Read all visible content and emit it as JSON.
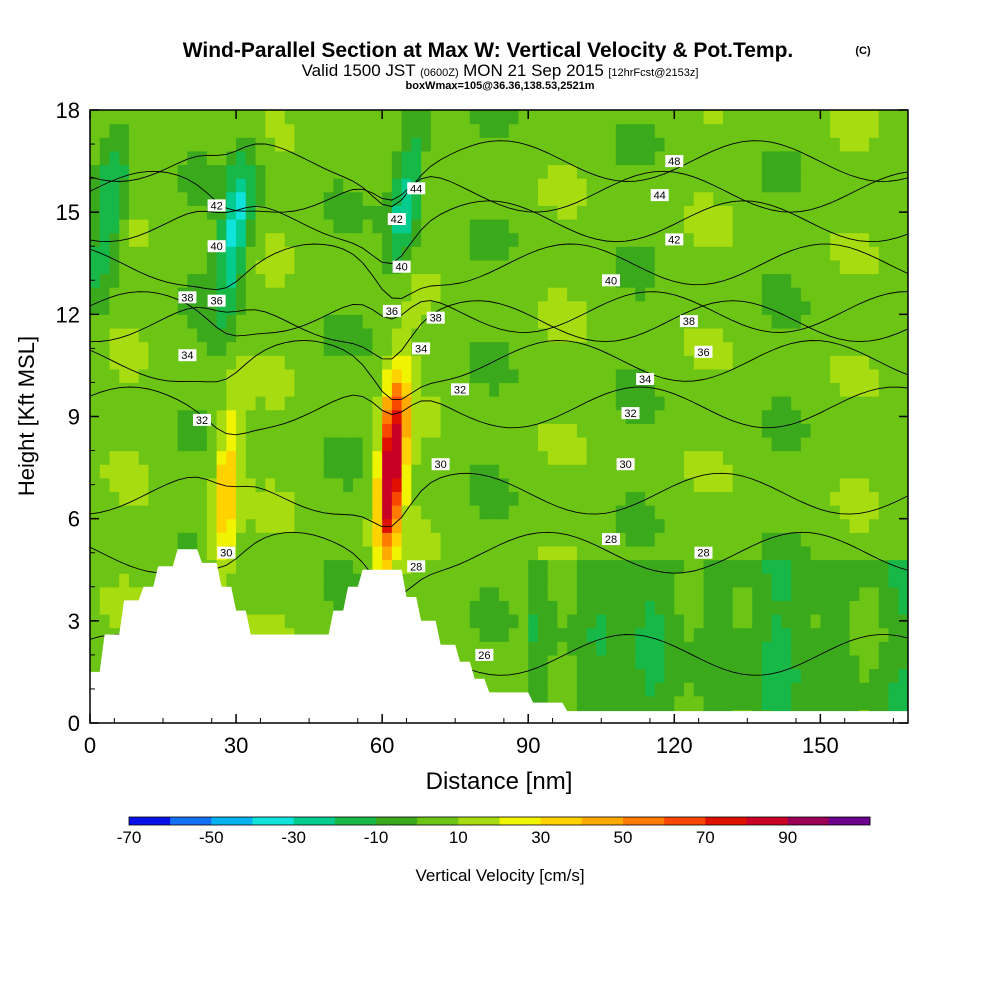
{
  "header": {
    "title": "Wind-Parallel Section at Max W: Vertical Velocity & Pot.Temp.",
    "copyright": "(C)",
    "valid_prefix": "Valid 1500 JST",
    "valid_utc": "(0600Z)",
    "valid_date": "MON 21 Sep 2015",
    "forecast": "[12hrFcst@2153z]",
    "box_info": "boxWmax=105@36.36,138.53,2521m"
  },
  "colorbar": {
    "label": "Vertical Velocity [cm/s]",
    "tick_labels": [
      "-70",
      "-50",
      "-30",
      "-10",
      "10",
      "30",
      "50",
      "70",
      "90"
    ],
    "bins": [
      -70,
      -60,
      -50,
      -40,
      -30,
      -20,
      -10,
      0,
      10,
      20,
      30,
      40,
      50,
      60,
      70,
      80,
      90,
      100
    ],
    "colors": [
      "#0a10e8",
      "#1470f2",
      "#08b2f0",
      "#10e2dc",
      "#04cc8e",
      "#18b848",
      "#3aaa1c",
      "#6cc414",
      "#a6dc10",
      "#f0f400",
      "#ffd200",
      "#ffaa00",
      "#ff7c00",
      "#f84800",
      "#e01000",
      "#c80026",
      "#9a0058",
      "#6a008c"
    ]
  },
  "chart_data": {
    "type": "heatmap",
    "xlabel": "Distance [nm]",
    "ylabel": "Height [Kft MSL]",
    "xlim": [
      0,
      168
    ],
    "ylim": [
      0,
      18
    ],
    "x_ticks": [
      0,
      30,
      60,
      90,
      120,
      150
    ],
    "y_ticks": [
      0,
      3,
      6,
      9,
      12,
      15,
      18
    ],
    "field": "Vertical Velocity [cm/s]",
    "contour_field": "Potential temperature",
    "background_value": 5,
    "features": [
      {
        "kind": "updraft",
        "x": 62,
        "y": 7.5,
        "peak": 100
      },
      {
        "kind": "updraft",
        "x": 28,
        "y": 6.8,
        "peak": 42
      },
      {
        "kind": "downdraft",
        "x": 30,
        "y": 14.5,
        "peak": -35
      },
      {
        "kind": "downdraft",
        "x": 65,
        "y": 15.5,
        "peak": -28
      },
      {
        "kind": "downdraft",
        "x": 4,
        "y": 15,
        "peak": -25
      }
    ],
    "terrain": [
      [
        0,
        1.5
      ],
      [
        2,
        1.5
      ],
      [
        3,
        2.6
      ],
      [
        6,
        2.6
      ],
      [
        7,
        3.6
      ],
      [
        10,
        3.6
      ],
      [
        11,
        4.0
      ],
      [
        13,
        4.0
      ],
      [
        14,
        4.6
      ],
      [
        17,
        4.6
      ],
      [
        18,
        5.1
      ],
      [
        22,
        5.1
      ],
      [
        23,
        4.7
      ],
      [
        26,
        4.7
      ],
      [
        27,
        4.0
      ],
      [
        29,
        4.0
      ],
      [
        30,
        3.3
      ],
      [
        32,
        3.3
      ],
      [
        33,
        2.6
      ],
      [
        49,
        2.6
      ],
      [
        50,
        3.3
      ],
      [
        52,
        3.3
      ],
      [
        53,
        4.0
      ],
      [
        55,
        4.0
      ],
      [
        56,
        4.5
      ],
      [
        64,
        4.5
      ],
      [
        65,
        3.7
      ],
      [
        67,
        3.7
      ],
      [
        68,
        3.0
      ],
      [
        71,
        3.0
      ],
      [
        72,
        2.3
      ],
      [
        75,
        2.3
      ],
      [
        76,
        1.8
      ],
      [
        78,
        1.8
      ],
      [
        79,
        1.3
      ],
      [
        81,
        1.3
      ],
      [
        82,
        0.9
      ],
      [
        90,
        0.9
      ],
      [
        91,
        0.6
      ],
      [
        97,
        0.6
      ],
      [
        98,
        0.35
      ],
      [
        168,
        0.35
      ]
    ],
    "contour_labels": [
      {
        "value": 48,
        "x": 120,
        "y": 16.5
      },
      {
        "value": 44,
        "x": 67,
        "y": 15.7
      },
      {
        "value": 44,
        "x": 117,
        "y": 15.5
      },
      {
        "value": 42,
        "x": 26,
        "y": 15.2
      },
      {
        "value": 42,
        "x": 63,
        "y": 14.8
      },
      {
        "value": 42,
        "x": 120,
        "y": 14.2
      },
      {
        "value": 40,
        "x": 26,
        "y": 14.0
      },
      {
        "value": 40,
        "x": 64,
        "y": 13.4
      },
      {
        "value": 40,
        "x": 107,
        "y": 13.0
      },
      {
        "value": 38,
        "x": 20,
        "y": 12.5
      },
      {
        "value": 36,
        "x": 26,
        "y": 12.4
      },
      {
        "value": 36,
        "x": 62,
        "y": 12.1
      },
      {
        "value": 38,
        "x": 71,
        "y": 11.9
      },
      {
        "value": 38,
        "x": 123,
        "y": 11.8
      },
      {
        "value": 34,
        "x": 68,
        "y": 11.0
      },
      {
        "value": 36,
        "x": 126,
        "y": 10.9
      },
      {
        "value": 34,
        "x": 20,
        "y": 10.8
      },
      {
        "value": 34,
        "x": 114,
        "y": 10.1
      },
      {
        "value": 32,
        "x": 76,
        "y": 9.8
      },
      {
        "value": 32,
        "x": 111,
        "y": 9.1
      },
      {
        "value": 32,
        "x": 23,
        "y": 8.9
      },
      {
        "value": 30,
        "x": 72,
        "y": 7.6
      },
      {
        "value": 30,
        "x": 110,
        "y": 7.6
      },
      {
        "value": 28,
        "x": 107,
        "y": 5.4
      },
      {
        "value": 28,
        "x": 126,
        "y": 5.0
      },
      {
        "value": 30,
        "x": 28,
        "y": 5.0
      },
      {
        "value": 28,
        "x": 67,
        "y": 4.6
      },
      {
        "value": 26,
        "x": 81,
        "y": 2.0
      }
    ]
  }
}
